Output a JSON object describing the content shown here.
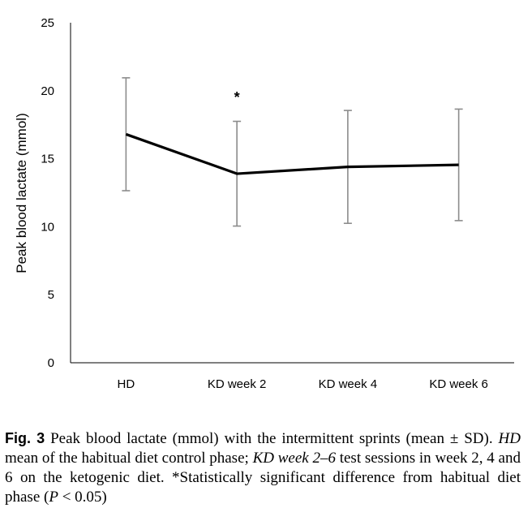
{
  "chart_data": {
    "type": "line",
    "categories": [
      "HD",
      "KD week 2",
      "KD week 4",
      "KD week 6"
    ],
    "series": [
      {
        "values": [
          16.8,
          13.9,
          14.4,
          14.55
        ],
        "error_plus_minus": [
          4.15,
          3.85,
          4.15,
          4.1
        ],
        "color": "#000000"
      }
    ],
    "xlabel": "",
    "ylabel": "Peak blood lactate (mmol)",
    "ylim": [
      0,
      25
    ],
    "yticks": [
      0,
      5,
      10,
      15,
      20,
      25
    ],
    "grid": false,
    "error_bar_color": "#8c8c8c",
    "annotations": [
      {
        "text": "*",
        "category": "KD week 2",
        "y": 19.5
      }
    ]
  },
  "caption": {
    "figure_label": "Fig. 3",
    "text_1": " Peak blood lactate (mmol) with the intermittent sprints (mean ± SD). ",
    "hd_abbrev": "HD",
    "text_2": " mean of the habitual diet control phase; ",
    "kd_abbrev": "KD week 2–6",
    "text_3": " test sessions in week 2, 4 and 6 on the ketogenic diet. *Statistically significant difference from habitual diet phase (",
    "p_symbol": "P",
    "text_4": " < 0.05)"
  }
}
